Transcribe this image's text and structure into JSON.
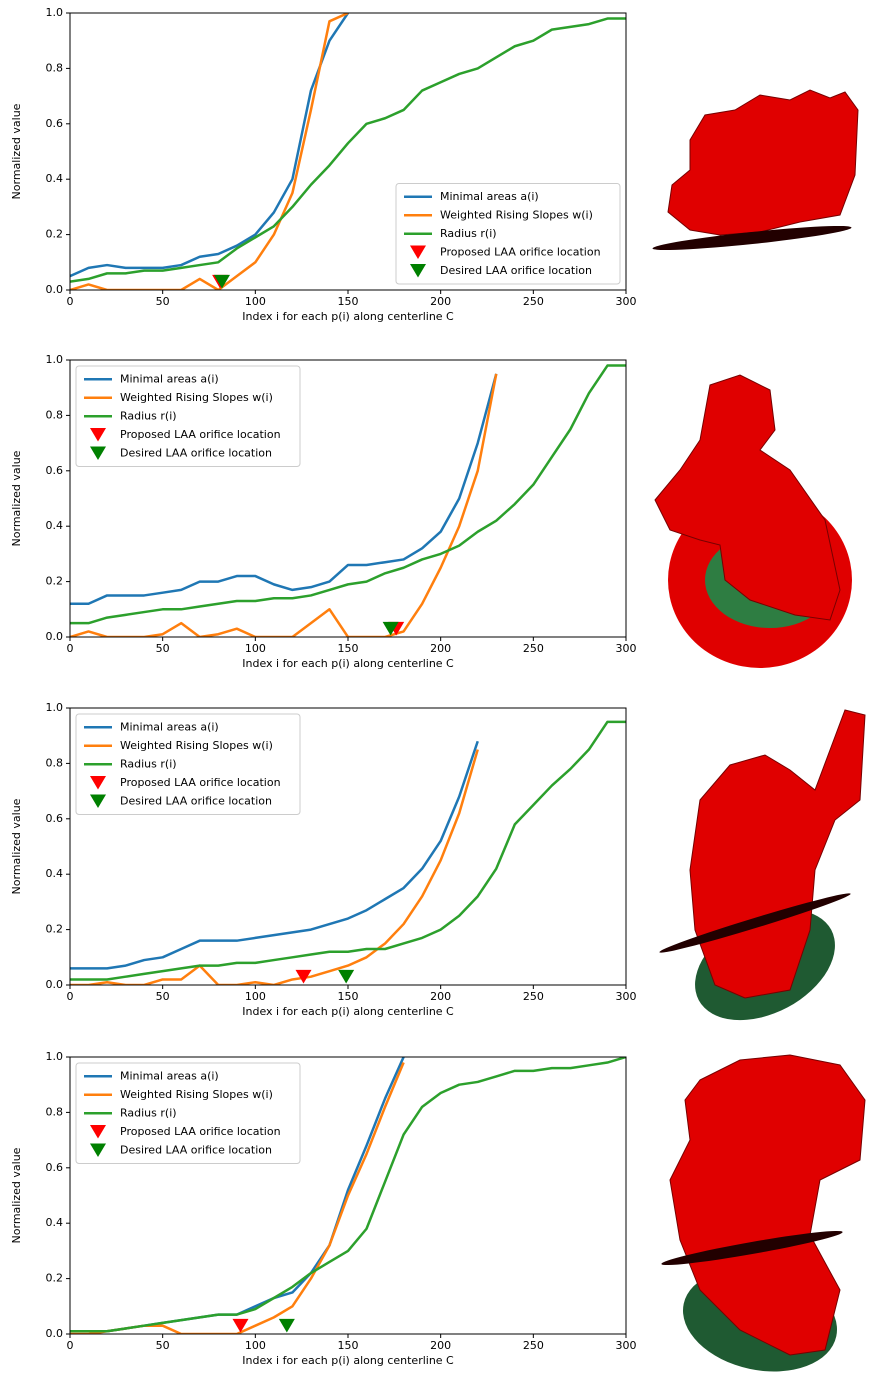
{
  "chart_data": [
    {
      "type": "line",
      "xlabel": "Index i for each p(i) along centerline C",
      "ylabel": "Normalized value",
      "legend_loc": "lower right",
      "xlim": [
        0,
        300
      ],
      "ylim": [
        0,
        1
      ],
      "xticks": [
        0,
        50,
        100,
        150,
        200,
        250,
        300
      ],
      "yticks": [
        {
          "value": 0,
          "label": "0.0"
        },
        {
          "value": 0.2,
          "label": "0.2"
        },
        {
          "value": 0.4,
          "label": "0.4"
        },
        {
          "value": 0.6,
          "label": "0.6"
        },
        {
          "value": 0.8,
          "label": "0.8"
        },
        {
          "value": 1,
          "label": "1.0"
        }
      ],
      "x": [
        0,
        10,
        20,
        30,
        40,
        50,
        60,
        70,
        80,
        90,
        100,
        110,
        120,
        130,
        140,
        150,
        160,
        170,
        180,
        190,
        200,
        210,
        220,
        230,
        240,
        250,
        260,
        270,
        280,
        290,
        300
      ],
      "series": [
        {
          "name": "Minimal areas a(i)",
          "color": "#1f77b4",
          "values": [
            0.05,
            0.08,
            0.09,
            0.08,
            0.08,
            0.08,
            0.09,
            0.12,
            0.13,
            0.16,
            0.2,
            0.28,
            0.4,
            0.72,
            0.9,
            1.0,
            null,
            null,
            null,
            null,
            null,
            null,
            null,
            null,
            null,
            null,
            null,
            null,
            null,
            null,
            null
          ]
        },
        {
          "name": "Weighted Rising Slopes w(i)",
          "color": "#ff7f0e",
          "values": [
            0,
            0.02,
            0,
            0,
            0,
            0,
            0,
            0.04,
            0,
            0.05,
            0.1,
            0.2,
            0.35,
            0.65,
            0.97,
            1.0,
            null,
            null,
            null,
            null,
            null,
            null,
            null,
            null,
            null,
            null,
            null,
            null,
            null,
            null,
            null
          ]
        },
        {
          "name": "Radius r(i)",
          "color": "#2ca02c",
          "values": [
            0.03,
            0.04,
            0.06,
            0.06,
            0.07,
            0.07,
            0.08,
            0.09,
            0.1,
            0.15,
            0.19,
            0.23,
            0.3,
            0.38,
            0.45,
            0.53,
            0.6,
            0.62,
            0.65,
            0.72,
            0.75,
            0.78,
            0.8,
            0.84,
            0.88,
            0.9,
            0.94,
            0.95,
            0.96,
            0.98,
            0.98
          ]
        }
      ],
      "markers": [
        {
          "name": "Proposed LAA orifice location",
          "color": "#ff0000",
          "x": 81,
          "y": 0.03
        },
        {
          "name": "Desired LAA orifice location",
          "color": "#008000",
          "x": 82,
          "y": 0.03
        }
      ]
    },
    {
      "type": "line",
      "xlabel": "Index i for each p(i) along centerline C",
      "ylabel": "Normalized value",
      "legend_loc": "upper left",
      "xlim": [
        0,
        300
      ],
      "ylim": [
        0,
        1
      ],
      "xticks": [
        0,
        50,
        100,
        150,
        200,
        250,
        300
      ],
      "yticks": [
        {
          "value": 0,
          "label": "0.0"
        },
        {
          "value": 0.2,
          "label": "0.2"
        },
        {
          "value": 0.4,
          "label": "0.4"
        },
        {
          "value": 0.6,
          "label": "0.6"
        },
        {
          "value": 0.8,
          "label": "0.8"
        },
        {
          "value": 1,
          "label": "1.0"
        }
      ],
      "x": [
        0,
        10,
        20,
        30,
        40,
        50,
        60,
        70,
        80,
        90,
        100,
        110,
        120,
        130,
        140,
        150,
        160,
        170,
        180,
        190,
        200,
        210,
        220,
        230,
        240,
        250,
        260,
        270,
        280,
        290,
        300
      ],
      "series": [
        {
          "name": "Minimal areas a(i)",
          "color": "#1f77b4",
          "values": [
            0.12,
            0.12,
            0.15,
            0.15,
            0.15,
            0.16,
            0.17,
            0.2,
            0.2,
            0.22,
            0.22,
            0.19,
            0.17,
            0.18,
            0.2,
            0.26,
            0.26,
            0.27,
            0.28,
            0.32,
            0.38,
            0.5,
            0.7,
            0.95,
            null,
            null,
            null,
            null,
            null,
            null,
            null
          ]
        },
        {
          "name": "Weighted Rising Slopes w(i)",
          "color": "#ff7f0e",
          "values": [
            0,
            0.02,
            0,
            0,
            0,
            0.01,
            0.05,
            0,
            0.01,
            0.03,
            0,
            0,
            0,
            0.05,
            0.1,
            0,
            0,
            0,
            0.02,
            0.12,
            0.25,
            0.4,
            0.6,
            0.95,
            null,
            null,
            null,
            null,
            null,
            null,
            null
          ]
        },
        {
          "name": "Radius r(i)",
          "color": "#2ca02c",
          "values": [
            0.05,
            0.05,
            0.07,
            0.08,
            0.09,
            0.1,
            0.1,
            0.11,
            0.12,
            0.13,
            0.13,
            0.14,
            0.14,
            0.15,
            0.17,
            0.19,
            0.2,
            0.23,
            0.25,
            0.28,
            0.3,
            0.33,
            0.38,
            0.42,
            0.48,
            0.55,
            0.65,
            0.75,
            0.88,
            0.98,
            0.98
          ]
        }
      ],
      "markers": [
        {
          "name": "Proposed LAA orifice location",
          "color": "#ff0000",
          "x": 176,
          "y": 0.03
        },
        {
          "name": "Desired LAA orifice location",
          "color": "#008000",
          "x": 173,
          "y": 0.03
        }
      ]
    },
    {
      "type": "line",
      "xlabel": "Index i for each p(i) along centerline C",
      "ylabel": "Normalized value",
      "legend_loc": "upper left",
      "xlim": [
        0,
        300
      ],
      "ylim": [
        0,
        1
      ],
      "xticks": [
        0,
        50,
        100,
        150,
        200,
        250,
        300
      ],
      "yticks": [
        {
          "value": 0,
          "label": "0.0"
        },
        {
          "value": 0.2,
          "label": "0.2"
        },
        {
          "value": 0.4,
          "label": "0.4"
        },
        {
          "value": 0.6,
          "label": "0.6"
        },
        {
          "value": 0.8,
          "label": "0.8"
        },
        {
          "value": 1,
          "label": "1.0"
        }
      ],
      "x": [
        0,
        10,
        20,
        30,
        40,
        50,
        60,
        70,
        80,
        90,
        100,
        110,
        120,
        130,
        140,
        150,
        160,
        170,
        180,
        190,
        200,
        210,
        220,
        230,
        240,
        250,
        260,
        270,
        280,
        290,
        300
      ],
      "series": [
        {
          "name": "Minimal areas a(i)",
          "color": "#1f77b4",
          "values": [
            0.06,
            0.06,
            0.06,
            0.07,
            0.09,
            0.1,
            0.13,
            0.16,
            0.16,
            0.16,
            0.17,
            0.18,
            0.19,
            0.2,
            0.22,
            0.24,
            0.27,
            0.31,
            0.35,
            0.42,
            0.52,
            0.68,
            0.88,
            null,
            null,
            null,
            null,
            null,
            null,
            null,
            null
          ]
        },
        {
          "name": "Weighted Rising Slopes w(i)",
          "color": "#ff7f0e",
          "values": [
            0,
            0,
            0.01,
            0,
            0,
            0.02,
            0.02,
            0.07,
            0,
            0,
            0.01,
            0,
            0.02,
            0.03,
            0.05,
            0.07,
            0.1,
            0.15,
            0.22,
            0.32,
            0.45,
            0.62,
            0.85,
            null,
            null,
            null,
            null,
            null,
            null,
            null,
            null
          ]
        },
        {
          "name": "Radius r(i)",
          "color": "#2ca02c",
          "values": [
            0.02,
            0.02,
            0.02,
            0.03,
            0.04,
            0.05,
            0.06,
            0.07,
            0.07,
            0.08,
            0.08,
            0.09,
            0.1,
            0.11,
            0.12,
            0.12,
            0.13,
            0.13,
            0.15,
            0.17,
            0.2,
            0.25,
            0.32,
            0.42,
            0.58,
            0.65,
            0.72,
            0.78,
            0.85,
            0.95,
            0.95
          ]
        }
      ],
      "markers": [
        {
          "name": "Proposed LAA orifice location",
          "color": "#ff0000",
          "x": 126,
          "y": 0.03
        },
        {
          "name": "Desired LAA orifice location",
          "color": "#008000",
          "x": 149,
          "y": 0.03
        }
      ]
    },
    {
      "type": "line",
      "xlabel": "Index i for each p(i) along centerline C",
      "ylabel": "Normalized value",
      "legend_loc": "upper left",
      "xlim": [
        0,
        300
      ],
      "ylim": [
        0,
        1
      ],
      "xticks": [
        0,
        50,
        100,
        150,
        200,
        250,
        300
      ],
      "yticks": [
        {
          "value": 0,
          "label": "0.0"
        },
        {
          "value": 0.2,
          "label": "0.2"
        },
        {
          "value": 0.4,
          "label": "0.4"
        },
        {
          "value": 0.6,
          "label": "0.6"
        },
        {
          "value": 0.8,
          "label": "0.8"
        },
        {
          "value": 1,
          "label": "1.0"
        }
      ],
      "x": [
        0,
        10,
        20,
        30,
        40,
        50,
        60,
        70,
        80,
        90,
        100,
        110,
        120,
        130,
        140,
        150,
        160,
        170,
        180,
        190,
        200,
        210,
        220,
        230,
        240,
        250,
        260,
        270,
        280,
        290,
        300
      ],
      "series": [
        {
          "name": "Minimal areas a(i)",
          "color": "#1f77b4",
          "values": [
            0.01,
            0.01,
            0.01,
            0.02,
            0.03,
            0.04,
            0.05,
            0.06,
            0.07,
            0.07,
            0.1,
            0.13,
            0.15,
            0.22,
            0.32,
            0.52,
            0.68,
            0.85,
            1.0,
            null,
            null,
            null,
            null,
            null,
            null,
            null,
            null,
            null,
            null,
            null,
            null
          ]
        },
        {
          "name": "Weighted Rising Slopes w(i)",
          "color": "#ff7f0e",
          "values": [
            0,
            0,
            0.01,
            0.02,
            0.03,
            0.03,
            0,
            0,
            0,
            0,
            0.03,
            0.06,
            0.1,
            0.2,
            0.32,
            0.5,
            0.65,
            0.82,
            0.98,
            null,
            null,
            null,
            null,
            null,
            null,
            null,
            null,
            null,
            null,
            null,
            null
          ]
        },
        {
          "name": "Radius r(i)",
          "color": "#2ca02c",
          "values": [
            0.01,
            0.01,
            0.01,
            0.02,
            0.03,
            0.04,
            0.05,
            0.06,
            0.07,
            0.07,
            0.09,
            0.13,
            0.17,
            0.22,
            0.26,
            0.3,
            0.38,
            0.55,
            0.72,
            0.82,
            0.87,
            0.9,
            0.91,
            0.93,
            0.95,
            0.95,
            0.96,
            0.96,
            0.97,
            0.98,
            1.0
          ]
        }
      ],
      "markers": [
        {
          "name": "Proposed LAA orifice location",
          "color": "#ff0000",
          "x": 92,
          "y": 0.03
        },
        {
          "name": "Desired LAA orifice location",
          "color": "#008000",
          "x": 117,
          "y": 0.03
        }
      ]
    }
  ]
}
